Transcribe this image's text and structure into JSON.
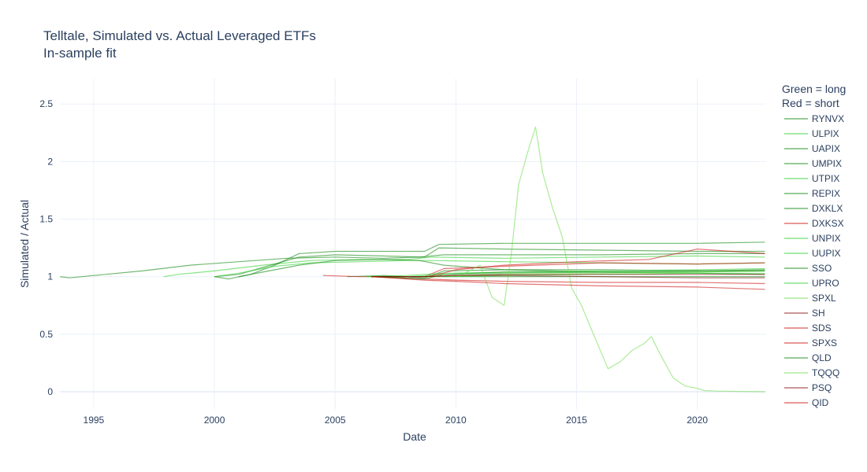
{
  "chart_data": {
    "type": "line",
    "title": "Telltale, Simulated vs. Actual Leveraged ETFs",
    "subtitle": "In-sample fit",
    "xlabel": "Date",
    "ylabel": "Simulated / Actual",
    "xlim": [
      1993.6,
      2022.85
    ],
    "ylim": [
      -0.15,
      2.72
    ],
    "x_ticks": [
      "1995",
      "2000",
      "2005",
      "2010",
      "2015",
      "2020"
    ],
    "x_tick_values": [
      1995,
      2000,
      2005,
      2010,
      2015,
      2020
    ],
    "y_ticks": [
      "0",
      "0.5",
      "1",
      "1.5",
      "2",
      "2.5"
    ],
    "y_tick_values": [
      0,
      0.5,
      1,
      1.5,
      2,
      2.5
    ],
    "grid": true,
    "legend_position": "right",
    "legend_title": [
      "Green = long",
      "Red = short"
    ],
    "colors": {
      "long": "#008000",
      "long_light": "#22cc22",
      "long_lighter": "#66dd44",
      "short": "#cc0000",
      "short_dark": "#800000",
      "grid": "#ebf0f8",
      "text": "#2a3f5f"
    },
    "series": [
      {
        "name": "RYNVX",
        "color": "#008000",
        "points": [
          [
            1993.6,
            1.0
          ],
          [
            1994.0,
            0.99
          ],
          [
            1995.0,
            1.01
          ],
          [
            1997.0,
            1.05
          ],
          [
            1999.0,
            1.1
          ],
          [
            2001.0,
            1.13
          ],
          [
            2003.0,
            1.16
          ],
          [
            2005.0,
            1.17
          ],
          [
            2007.0,
            1.16
          ],
          [
            2008.5,
            1.17
          ],
          [
            2009.5,
            1.19
          ],
          [
            2012.0,
            1.19
          ],
          [
            2016.0,
            1.19
          ],
          [
            2020.0,
            1.2
          ],
          [
            2022.8,
            1.2
          ]
        ]
      },
      {
        "name": "ULPIX",
        "color": "#22cc22",
        "points": [
          [
            1997.9,
            1.0
          ],
          [
            1998.5,
            1.02
          ],
          [
            2000.0,
            1.05
          ],
          [
            2002.0,
            1.1
          ],
          [
            2004.0,
            1.14
          ],
          [
            2006.0,
            1.15
          ],
          [
            2008.0,
            1.15
          ],
          [
            2009.0,
            1.17
          ],
          [
            2012.0,
            1.16
          ],
          [
            2016.0,
            1.17
          ],
          [
            2020.0,
            1.18
          ],
          [
            2022.8,
            1.17
          ]
        ]
      },
      {
        "name": "UAPIX",
        "color": "#008000",
        "points": [
          [
            2000.0,
            1.0
          ],
          [
            2000.6,
            0.98
          ],
          [
            2001.5,
            1.02
          ],
          [
            2002.5,
            1.1
          ],
          [
            2003.5,
            1.2
          ],
          [
            2005.0,
            1.22
          ],
          [
            2007.0,
            1.22
          ],
          [
            2008.7,
            1.22
          ],
          [
            2009.3,
            1.28
          ],
          [
            2012.0,
            1.29
          ],
          [
            2016.0,
            1.29
          ],
          [
            2020.0,
            1.29
          ],
          [
            2022.8,
            1.3
          ]
        ]
      },
      {
        "name": "UMPIX",
        "color": "#008000",
        "points": [
          [
            2000.0,
            1.0
          ],
          [
            2001.0,
            1.02
          ],
          [
            2002.0,
            1.08
          ],
          [
            2003.5,
            1.17
          ],
          [
            2005.0,
            1.19
          ],
          [
            2007.0,
            1.18
          ],
          [
            2008.7,
            1.17
          ],
          [
            2009.3,
            1.25
          ],
          [
            2012.0,
            1.24
          ],
          [
            2016.0,
            1.23
          ],
          [
            2020.0,
            1.22
          ],
          [
            2022.8,
            1.22
          ]
        ]
      },
      {
        "name": "UTPIX",
        "color": "#22cc22",
        "points": [
          [
            2000.0,
            1.0
          ],
          [
            2001.0,
            1.03
          ],
          [
            2002.5,
            1.09
          ],
          [
            2004.0,
            1.12
          ],
          [
            2006.0,
            1.13
          ],
          [
            2008.0,
            1.14
          ],
          [
            2009.0,
            1.14
          ],
          [
            2012.0,
            1.13
          ],
          [
            2016.0,
            1.12
          ],
          [
            2020.0,
            1.11
          ],
          [
            2022.8,
            1.12
          ]
        ]
      },
      {
        "name": "REPIX",
        "color": "#008000",
        "points": [
          [
            2001.0,
            1.0
          ],
          [
            2002.0,
            1.04
          ],
          [
            2003.5,
            1.1
          ],
          [
            2005.0,
            1.14
          ],
          [
            2007.0,
            1.15
          ],
          [
            2008.5,
            1.14
          ],
          [
            2009.5,
            1.1
          ],
          [
            2012.0,
            1.06
          ],
          [
            2016.0,
            1.04
          ],
          [
            2020.0,
            1.03
          ],
          [
            2022.8,
            1.02
          ]
        ]
      },
      {
        "name": "DXKLX",
        "color": "#008000",
        "points": [
          [
            2005.5,
            1.0
          ],
          [
            2007.0,
            1.01
          ],
          [
            2008.7,
            0.99
          ],
          [
            2009.5,
            1.05
          ],
          [
            2012.0,
            1.06
          ],
          [
            2016.0,
            1.06
          ],
          [
            2020.0,
            1.05
          ],
          [
            2022.8,
            1.06
          ]
        ]
      },
      {
        "name": "DXKSX",
        "color": "#cc0000",
        "points": [
          [
            2004.5,
            1.01
          ],
          [
            2006.0,
            1.0
          ],
          [
            2008.7,
            1.0
          ],
          [
            2009.5,
            1.07
          ],
          [
            2012.0,
            1.09
          ],
          [
            2016.0,
            1.12
          ],
          [
            2020.0,
            1.11
          ],
          [
            2022.8,
            1.12
          ]
        ]
      },
      {
        "name": "UNPIX",
        "color": "#22cc22",
        "points": [
          [
            2006.3,
            1.0
          ],
          [
            2008.0,
            1.01
          ],
          [
            2009.5,
            1.03
          ],
          [
            2012.0,
            1.04
          ],
          [
            2016.0,
            1.05
          ],
          [
            2020.0,
            1.06
          ],
          [
            2022.8,
            1.07
          ]
        ]
      },
      {
        "name": "UUPIX",
        "color": "#22cc22",
        "points": [
          [
            2006.3,
            1.0
          ],
          [
            2008.0,
            1.0
          ],
          [
            2009.5,
            1.02
          ],
          [
            2012.0,
            1.03
          ],
          [
            2016.0,
            1.04
          ],
          [
            2020.0,
            1.04
          ],
          [
            2022.8,
            1.05
          ]
        ]
      },
      {
        "name": "SSO",
        "color": "#008000",
        "points": [
          [
            2006.5,
            1.0
          ],
          [
            2008.7,
            1.0
          ],
          [
            2010.0,
            1.0
          ],
          [
            2012.0,
            1.0
          ],
          [
            2016.0,
            1.0
          ],
          [
            2020.0,
            1.0
          ],
          [
            2022.8,
            1.0
          ]
        ]
      },
      {
        "name": "UPRO",
        "color": "#22cc22",
        "points": [
          [
            2009.5,
            1.0
          ],
          [
            2012.0,
            1.01
          ],
          [
            2016.0,
            1.02
          ],
          [
            2020.0,
            1.03
          ],
          [
            2022.8,
            1.03
          ]
        ]
      },
      {
        "name": "SPXL",
        "color": "#66dd44",
        "points": [
          [
            2008.9,
            1.0
          ],
          [
            2012.0,
            1.02
          ],
          [
            2016.0,
            1.03
          ],
          [
            2020.0,
            1.04
          ],
          [
            2022.8,
            1.05
          ]
        ]
      },
      {
        "name": "SH",
        "color": "#800000",
        "points": [
          [
            2006.5,
            1.0
          ],
          [
            2008.7,
            1.0
          ],
          [
            2010.0,
            1.01
          ],
          [
            2012.0,
            1.02
          ],
          [
            2016.0,
            1.02
          ],
          [
            2020.0,
            1.02
          ],
          [
            2022.8,
            1.02
          ]
        ]
      },
      {
        "name": "SDS",
        "color": "#cc0000",
        "points": [
          [
            2006.5,
            1.0
          ],
          [
            2008.7,
            0.98
          ],
          [
            2010.0,
            0.97
          ],
          [
            2012.0,
            0.96
          ],
          [
            2016.0,
            0.95
          ],
          [
            2020.0,
            0.95
          ],
          [
            2022.8,
            0.94
          ]
        ]
      },
      {
        "name": "SPXS",
        "color": "#cc0000",
        "points": [
          [
            2008.9,
            1.0
          ],
          [
            2010.0,
            1.06
          ],
          [
            2012.0,
            1.1
          ],
          [
            2015.0,
            1.13
          ],
          [
            2018.0,
            1.15
          ],
          [
            2020.0,
            1.24
          ],
          [
            2022.8,
            1.2
          ]
        ]
      },
      {
        "name": "QLD",
        "color": "#008000",
        "points": [
          [
            2006.5,
            1.0
          ],
          [
            2008.7,
            0.98
          ],
          [
            2009.5,
            1.02
          ],
          [
            2012.0,
            1.04
          ],
          [
            2016.0,
            1.04
          ],
          [
            2020.0,
            1.05
          ],
          [
            2022.8,
            1.05
          ]
        ]
      },
      {
        "name": "TQQQ",
        "color": "#66dd44",
        "points": [
          [
            2010.1,
            1.0
          ],
          [
            2011.0,
            1.1
          ],
          [
            2011.5,
            0.82
          ],
          [
            2012.0,
            0.75
          ],
          [
            2012.3,
            1.2
          ],
          [
            2012.6,
            1.8
          ],
          [
            2013.0,
            2.1
          ],
          [
            2013.3,
            2.3
          ],
          [
            2013.6,
            1.9
          ],
          [
            2014.0,
            1.6
          ],
          [
            2014.4,
            1.35
          ],
          [
            2014.8,
            0.9
          ],
          [
            2015.2,
            0.75
          ],
          [
            2015.6,
            0.55
          ],
          [
            2016.0,
            0.35
          ],
          [
            2016.3,
            0.2
          ],
          [
            2016.8,
            0.26
          ],
          [
            2017.3,
            0.36
          ],
          [
            2017.8,
            0.42
          ],
          [
            2018.1,
            0.48
          ],
          [
            2018.4,
            0.35
          ],
          [
            2019.0,
            0.12
          ],
          [
            2019.5,
            0.05
          ],
          [
            2020.0,
            0.03
          ],
          [
            2020.3,
            0.01
          ],
          [
            2021.0,
            0.005
          ],
          [
            2022.8,
            0.0
          ]
        ]
      },
      {
        "name": "PSQ",
        "color": "#800000",
        "points": [
          [
            2006.5,
            1.0
          ],
          [
            2008.7,
            1.0
          ],
          [
            2010.0,
            1.01
          ],
          [
            2012.0,
            1.01
          ],
          [
            2016.0,
            1.0
          ],
          [
            2020.0,
            0.99
          ],
          [
            2022.8,
            0.99
          ]
        ]
      },
      {
        "name": "QID",
        "color": "#cc0000",
        "points": [
          [
            2006.5,
            1.0
          ],
          [
            2008.7,
            0.97
          ],
          [
            2010.0,
            0.96
          ],
          [
            2012.0,
            0.94
          ],
          [
            2016.0,
            0.92
          ],
          [
            2020.0,
            0.91
          ],
          [
            2022.8,
            0.89
          ]
        ]
      }
    ]
  }
}
